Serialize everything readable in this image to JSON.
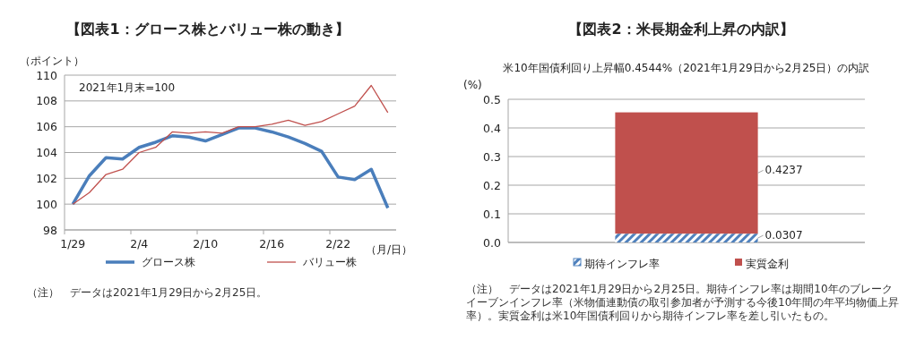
{
  "chart_data": [
    {
      "type": "line",
      "title": "【図表1：グロース株とバリュー株の動き】",
      "ylabel": "（ポイント）",
      "xlabel": "（月/日）",
      "categories": [
        "1/29",
        null,
        null,
        null,
        "2/4",
        null,
        null,
        null,
        "2/10",
        null,
        null,
        null,
        "2/16",
        null,
        null,
        null,
        "2/22",
        null,
        null,
        null
      ],
      "series": [
        {
          "name": "グロース株",
          "color": "#4a7ebb",
          "values": [
            100,
            102.2,
            103.6,
            103.5,
            104.4,
            104.8,
            105.3,
            105.2,
            104.9,
            105.4,
            105.9,
            105.9,
            105.6,
            105.2,
            104.7,
            104.1,
            102.1,
            101.9,
            102.7,
            99.7
          ]
        },
        {
          "name": "バリュー株",
          "color": "#c0504d",
          "values": [
            100,
            100.9,
            102.3,
            102.7,
            104.0,
            104.4,
            105.6,
            105.5,
            105.6,
            105.5,
            106.0,
            106.0,
            106.2,
            106.5,
            106.1,
            106.4,
            107.0,
            107.6,
            109.2,
            107.1
          ]
        }
      ],
      "ylim": [
        98,
        110
      ],
      "yticks": [
        98,
        100,
        102,
        104,
        106,
        108,
        110
      ],
      "grid": "y",
      "legend": "bottom",
      "annotations": [
        "2021年1月末=100",
        "（注）　データは2021年1月29日から2月25日。"
      ]
    },
    {
      "type": "bar",
      "title": "【図表2：米長期金利上昇の内訳】",
      "subtitle": "米10年国債利回り上昇幅0.4544%（2021年1月29日から2月25日）の内訳",
      "ylabel": "(%)",
      "categories": [
        null
      ],
      "stacked": true,
      "series": [
        {
          "name": "期待インフレ率",
          "color": "#4f81bd",
          "values": [
            0.0307
          ]
        },
        {
          "name": "実質金利",
          "color": "#c0504d",
          "values": [
            0.4237
          ]
        }
      ],
      "ylim": [
        0,
        0.5
      ],
      "yticks": [
        {
          "value": 0,
          "label": "0.0"
        },
        {
          "value": 0.1,
          "label": "0.1"
        },
        {
          "value": 0.2,
          "label": "0.2"
        },
        {
          "value": 0.3,
          "label": "0.3"
        },
        {
          "value": 0.4,
          "label": "0.4"
        },
        {
          "value": 0.5,
          "label": "0.5"
        }
      ],
      "grid": "y",
      "legend": "bottom",
      "data_labels": true,
      "annotations": [
        "（注）　データは2021年1月29日から2月25日。期待インフレ率は期間10年のブレークイーブンインフレ率（米物価連動債の取引参加者が予測する今後10年間の年平均物価上昇率）。実質金利は米10年国債利回りから期待インフレ率を差し引いたもの。"
      ]
    }
  ]
}
